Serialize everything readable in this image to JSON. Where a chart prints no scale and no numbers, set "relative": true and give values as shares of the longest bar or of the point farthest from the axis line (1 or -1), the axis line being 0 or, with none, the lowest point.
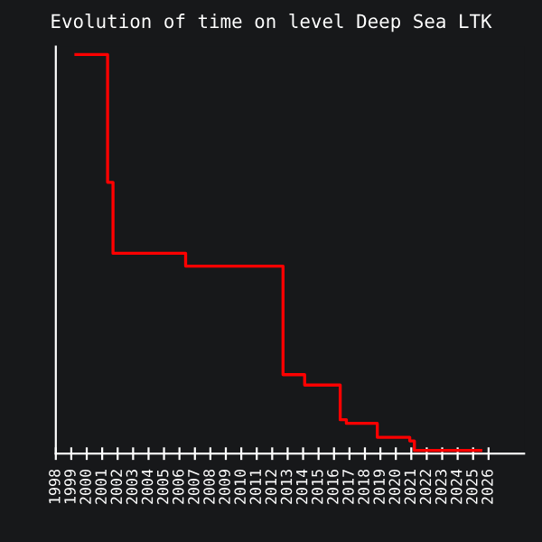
{
  "chart_data": {
    "type": "step",
    "title": "Evolution of time on level Deep Sea LTK",
    "relative": true,
    "x": [
      1999.3,
      2001.35,
      2001.7,
      2006.4,
      2012.7,
      2014.1,
      2016.4,
      2016.8,
      2018.8,
      2020.9,
      2021.2,
      2025.5
    ],
    "series": [
      {
        "color": "#ff0000",
        "values": [
          1,
          0.68,
          0.502,
          0.47,
          0.198,
          0.172,
          0.085,
          0.076,
          0.041,
          0.032,
          0.008,
          0.008
        ]
      }
    ],
    "xlim": [
      1998,
      2028.3
    ],
    "xticks": [
      1998,
      1999,
      2000,
      2001,
      2002,
      2003,
      2004,
      2005,
      2006,
      2007,
      2008,
      2009,
      2010,
      2011,
      2012,
      2013,
      2014,
      2015,
      2016,
      2017,
      2018,
      2019,
      2020,
      2021,
      2022,
      2023,
      2024,
      2025,
      2026
    ],
    "grid": false,
    "legend": false
  }
}
